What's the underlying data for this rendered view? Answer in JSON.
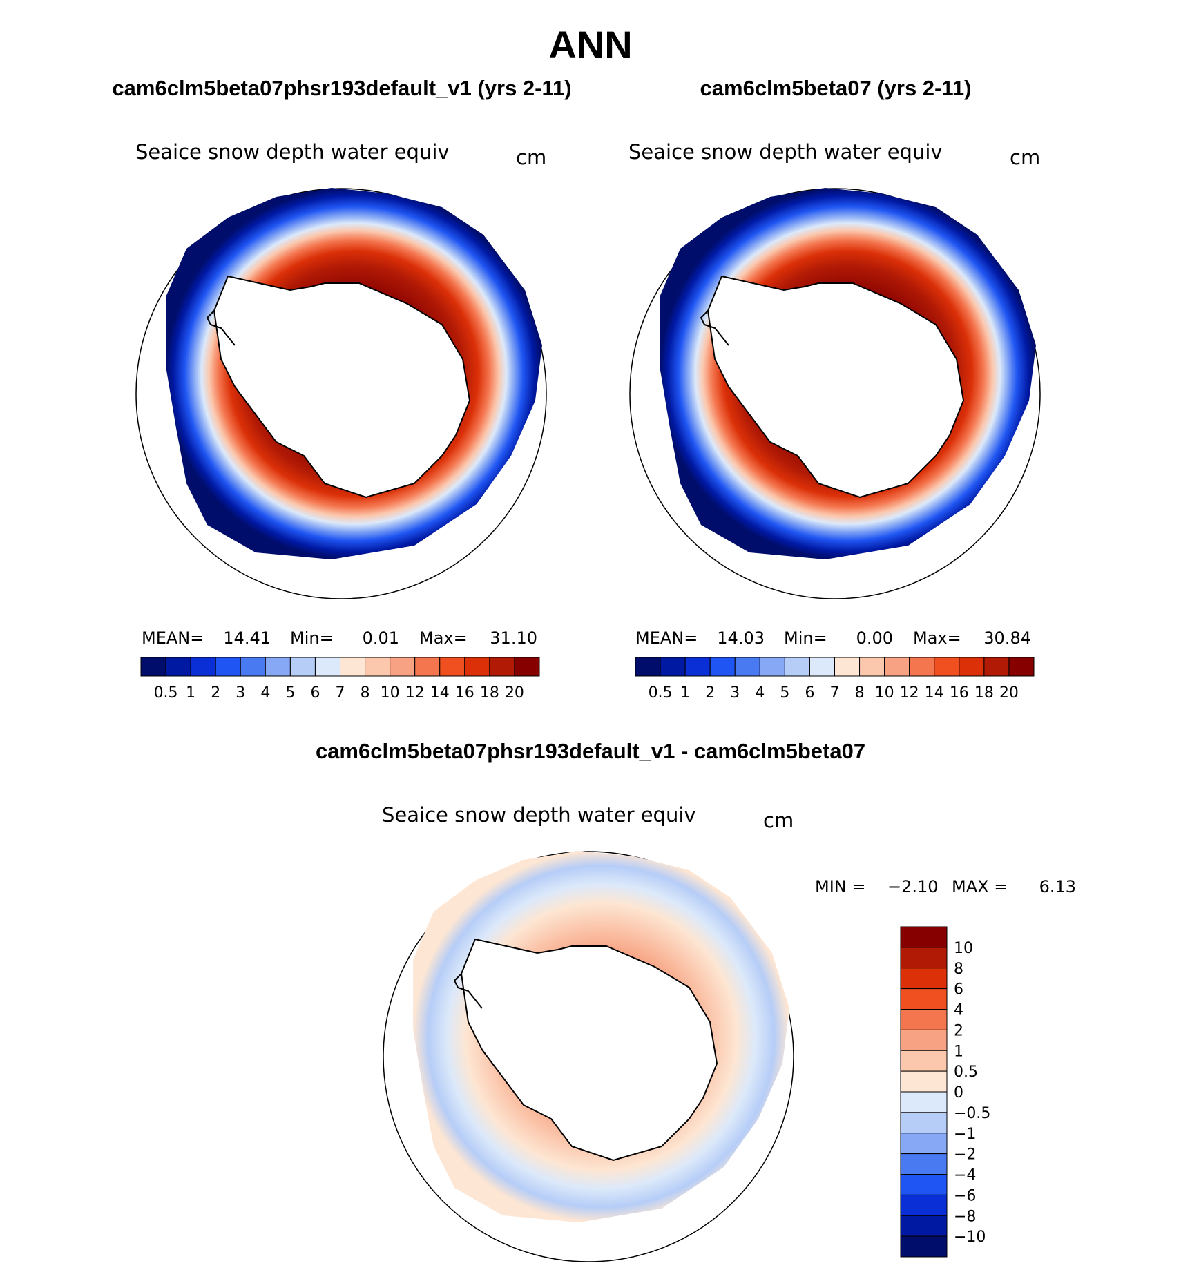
{
  "page_title": "ANN",
  "palette_abs": [
    "#000d6b",
    "#0019a3",
    "#0a2fd6",
    "#1f55f2",
    "#4a7af2",
    "#86a8f5",
    "#b6cdf7",
    "#dce9fa",
    "#fde6d3",
    "#fbc8ae",
    "#f7a383",
    "#f4764f",
    "#f0501f",
    "#db3008",
    "#b11a05",
    "#860000"
  ],
  "palette_diff": [
    "#860000",
    "#b11a05",
    "#db3008",
    "#f0501f",
    "#f4764f",
    "#f7a383",
    "#fbc8ae",
    "#fde6d3",
    "#dce9fa",
    "#b6cdf7",
    "#86a8f5",
    "#4a7af2",
    "#1f55f2",
    "#0a2fd6",
    "#0019a3",
    "#000d6b"
  ],
  "panels": [
    {
      "case_title": "cam6clm5beta07phsr193default_v1 (yrs 2-11)",
      "variable": "Seaice snow depth water equiv",
      "units": "cm",
      "stats": {
        "mean_label": "MEAN=",
        "mean": "14.41",
        "min_label": "Min=",
        "min": "0.01",
        "max_label": "Max=",
        "max": "31.10"
      },
      "colorbar_labels": [
        "0.5",
        "1",
        "2",
        "3",
        "4",
        "5",
        "6",
        "7",
        "8",
        "10",
        "12",
        "14",
        "16",
        "18",
        "20"
      ]
    },
    {
      "case_title": "cam6clm5beta07 (yrs 2-11)",
      "variable": "Seaice snow depth water equiv",
      "units": "cm",
      "stats": {
        "mean_label": "MEAN=",
        "mean": "14.03",
        "min_label": "Min=",
        "min": "0.00",
        "max_label": "Max=",
        "max": "30.84"
      },
      "colorbar_labels": [
        "0.5",
        "1",
        "2",
        "3",
        "4",
        "5",
        "6",
        "7",
        "8",
        "10",
        "12",
        "14",
        "16",
        "18",
        "20"
      ]
    }
  ],
  "diff_panel": {
    "case_title": "cam6clm5beta07phsr193default_v1 - cam6clm5beta07",
    "variable": "Seaice snow depth water equiv",
    "units": "cm",
    "stats": {
      "min_label": "MIN =",
      "min": "−2.10",
      "max_label": "MAX =",
      "max": "6.13"
    },
    "colorbar_labels": [
      "10",
      "8",
      "6",
      "4",
      "2",
      "1",
      "0.5",
      "0",
      "−0.5",
      "−1",
      "−2",
      "−4",
      "−6",
      "−8",
      "−10"
    ]
  }
}
